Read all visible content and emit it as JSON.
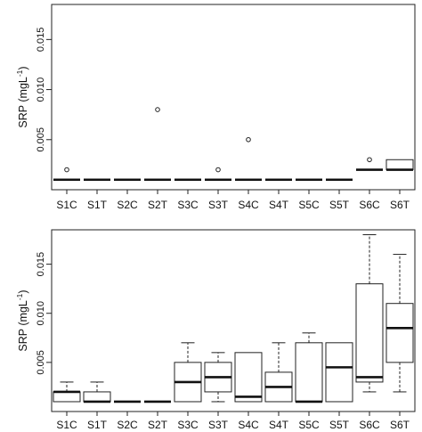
{
  "chart_data": [
    {
      "type": "boxplot",
      "ylabel": "SRP (mgL",
      "ylabel_superscript": "-1",
      "ylabel_close": ")",
      "ylim": [
        0,
        0.0185
      ],
      "yticks": [
        0.005,
        0.01,
        0.015
      ],
      "ytick_labels": [
        "0.005",
        "0.010",
        "0.015"
      ],
      "grid": false,
      "categories": [
        "S1C",
        "S1T",
        "S2C",
        "S2T",
        "S3C",
        "S3T",
        "S4C",
        "S4T",
        "S5C",
        "S5T",
        "S6C",
        "S6T"
      ],
      "boxes": [
        {
          "min": 0.001,
          "q1": 0.001,
          "median": 0.001,
          "q3": 0.001,
          "max": 0.001,
          "outliers": [
            0.002
          ]
        },
        {
          "min": 0.001,
          "q1": 0.001,
          "median": 0.001,
          "q3": 0.001,
          "max": 0.001,
          "outliers": []
        },
        {
          "min": 0.001,
          "q1": 0.001,
          "median": 0.001,
          "q3": 0.001,
          "max": 0.001,
          "outliers": []
        },
        {
          "min": 0.001,
          "q1": 0.001,
          "median": 0.001,
          "q3": 0.001,
          "max": 0.001,
          "outliers": [
            0.008
          ]
        },
        {
          "min": 0.001,
          "q1": 0.001,
          "median": 0.001,
          "q3": 0.001,
          "max": 0.001,
          "outliers": []
        },
        {
          "min": 0.001,
          "q1": 0.001,
          "median": 0.001,
          "q3": 0.001,
          "max": 0.001,
          "outliers": [
            0.002
          ]
        },
        {
          "min": 0.001,
          "q1": 0.001,
          "median": 0.001,
          "q3": 0.001,
          "max": 0.001,
          "outliers": [
            0.005
          ]
        },
        {
          "min": 0.001,
          "q1": 0.001,
          "median": 0.001,
          "q3": 0.001,
          "max": 0.001,
          "outliers": []
        },
        {
          "min": 0.001,
          "q1": 0.001,
          "median": 0.001,
          "q3": 0.001,
          "max": 0.001,
          "outliers": []
        },
        {
          "min": 0.001,
          "q1": 0.001,
          "median": 0.001,
          "q3": 0.001,
          "max": 0.001,
          "outliers": []
        },
        {
          "min": 0.002,
          "q1": 0.002,
          "median": 0.002,
          "q3": 0.002,
          "max": 0.002,
          "outliers": [
            0.003
          ]
        },
        {
          "min": 0.002,
          "q1": 0.002,
          "median": 0.002,
          "q3": 0.003,
          "max": 0.003,
          "outliers": []
        }
      ]
    },
    {
      "type": "boxplot",
      "ylabel": "SRP (mgL",
      "ylabel_superscript": "-1",
      "ylabel_close": ")",
      "ylim": [
        0,
        0.0185
      ],
      "yticks": [
        0.005,
        0.01,
        0.015
      ],
      "ytick_labels": [
        "0.005",
        "0.010",
        "0.015"
      ],
      "grid": false,
      "categories": [
        "S1C",
        "S1T",
        "S2C",
        "S2T",
        "S3C",
        "S3T",
        "S4C",
        "S4T",
        "S5C",
        "S5T",
        "S6C",
        "S6T"
      ],
      "boxes": [
        {
          "min": 0.001,
          "q1": 0.001,
          "median": 0.002,
          "q3": 0.002,
          "max": 0.003,
          "outliers": []
        },
        {
          "min": 0.001,
          "q1": 0.001,
          "median": 0.001,
          "q3": 0.002,
          "max": 0.003,
          "outliers": []
        },
        {
          "min": 0.001,
          "q1": 0.001,
          "median": 0.001,
          "q3": 0.001,
          "max": 0.001,
          "outliers": []
        },
        {
          "min": 0.001,
          "q1": 0.001,
          "median": 0.001,
          "q3": 0.001,
          "max": 0.001,
          "outliers": []
        },
        {
          "min": 0.001,
          "q1": 0.001,
          "median": 0.003,
          "q3": 0.005,
          "max": 0.007,
          "outliers": []
        },
        {
          "min": 0.001,
          "q1": 0.002,
          "median": 0.0035,
          "q3": 0.005,
          "max": 0.006,
          "outliers": []
        },
        {
          "min": 0.001,
          "q1": 0.001,
          "median": 0.0015,
          "q3": 0.006,
          "max": 0.006,
          "outliers": []
        },
        {
          "min": 0.001,
          "q1": 0.001,
          "median": 0.0025,
          "q3": 0.004,
          "max": 0.007,
          "outliers": []
        },
        {
          "min": 0.001,
          "q1": 0.001,
          "median": 0.001,
          "q3": 0.007,
          "max": 0.008,
          "outliers": []
        },
        {
          "min": 0.001,
          "q1": 0.001,
          "median": 0.0045,
          "q3": 0.007,
          "max": 0.007,
          "outliers": []
        },
        {
          "min": 0.002,
          "q1": 0.003,
          "median": 0.0035,
          "q3": 0.013,
          "max": 0.018,
          "outliers": []
        },
        {
          "min": 0.002,
          "q1": 0.005,
          "median": 0.0085,
          "q3": 0.011,
          "max": 0.016,
          "outliers": []
        }
      ]
    }
  ]
}
